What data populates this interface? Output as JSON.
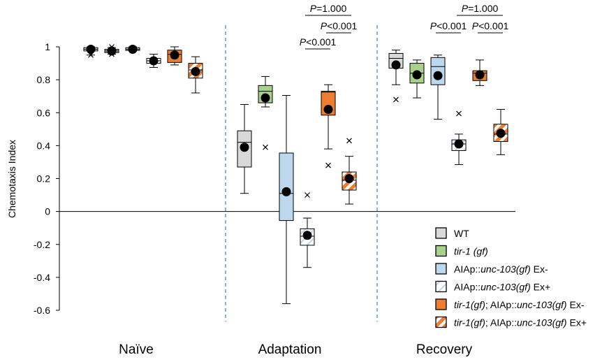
{
  "chart_data": {
    "type": "box",
    "ylabel": "Chemotaxis Index",
    "ylim": [
      -0.6,
      1
    ],
    "yticks": [
      "-0.6",
      "-0.4",
      "-0.2",
      "0",
      "0.2",
      "0.4",
      "0.6",
      "0.8",
      "1"
    ],
    "groups": [
      "Naïve",
      "Adaptation",
      "Recovery"
    ],
    "colors": {
      "wt": "#d9d9d9",
      "tir1": "#a9d18e",
      "aiap": "#bdd7ee",
      "orange": "#ed7d31",
      "dashed_line": "#5b9bd5"
    },
    "series": [
      {
        "legend_prefix": "",
        "legend_italic": "",
        "legend_mid": "WT",
        "legend_italic2": "",
        "legend_suffix": "",
        "fill": "wt",
        "striped": false,
        "stats": [
          {
            "min": 0.95,
            "q1": 0.975,
            "median": 0.985,
            "q3": 0.995,
            "max": 1.0,
            "mean": 0.985,
            "outliers": [
              0.95
            ]
          },
          {
            "min": 0.11,
            "q1": 0.27,
            "median": 0.42,
            "q3": 0.49,
            "max": 0.65,
            "mean": 0.39,
            "outliers": []
          },
          {
            "min": 0.77,
            "q1": 0.87,
            "median": 0.93,
            "q3": 0.96,
            "max": 0.98,
            "mean": 0.89,
            "outliers": [
              0.68
            ]
          }
        ]
      },
      {
        "legend_prefix": "",
        "legend_italic": "tir-1 (gf)",
        "legend_mid": "",
        "legend_italic2": "",
        "legend_suffix": "",
        "fill": "tir1",
        "striped": false,
        "stats": [
          {
            "min": 0.955,
            "q1": 0.965,
            "median": 0.975,
            "q3": 0.985,
            "max": 0.995,
            "mean": 0.975,
            "outliers": [
              0.955,
              1.0
            ]
          },
          {
            "min": 0.635,
            "q1": 0.66,
            "median": 0.73,
            "q3": 0.765,
            "max": 0.82,
            "mean": 0.69,
            "outliers": [
              0.39
            ]
          },
          {
            "min": 0.69,
            "q1": 0.78,
            "median": 0.84,
            "q3": 0.9,
            "max": 0.92,
            "mean": 0.83,
            "outliers": []
          }
        ]
      },
      {
        "legend_prefix": "AIAp::",
        "legend_italic": "unc-103(gf)",
        "legend_mid": " Ex-",
        "legend_italic2": "",
        "legend_suffix": "",
        "fill": "aiap",
        "striped": false,
        "stats": [
          {
            "min": 0.975,
            "q1": 0.978,
            "median": 0.985,
            "q3": 0.995,
            "max": 1.0,
            "mean": 0.985,
            "outliers": []
          },
          {
            "min": -0.56,
            "q1": -0.055,
            "median": 0.11,
            "q3": 0.355,
            "max": 0.705,
            "mean": 0.12,
            "outliers": []
          },
          {
            "min": 0.56,
            "q1": 0.77,
            "median": 0.88,
            "q3": 0.935,
            "max": 0.95,
            "mean": 0.825,
            "outliers": []
          }
        ]
      },
      {
        "legend_prefix": "AIAp::",
        "legend_italic": "unc-103(gf)",
        "legend_mid": " Ex+",
        "legend_italic2": "",
        "legend_suffix": "",
        "fill": "aiap",
        "striped": true,
        "stripe_color": "#ffffff",
        "stats": [
          {
            "min": 0.875,
            "q1": 0.9,
            "median": 0.915,
            "q3": 0.93,
            "max": 0.955,
            "mean": 0.915,
            "outliers": []
          },
          {
            "min": -0.34,
            "q1": -0.205,
            "median": -0.15,
            "q3": -0.105,
            "max": -0.04,
            "mean": -0.145,
            "outliers": [
              0.1
            ]
          },
          {
            "min": 0.285,
            "q1": 0.37,
            "median": 0.41,
            "q3": 0.435,
            "max": 0.47,
            "mean": 0.41,
            "outliers": [
              0.595
            ]
          }
        ]
      },
      {
        "legend_prefix": "",
        "legend_italic": "tir-1(gf)",
        "legend_mid": "; AIAp::",
        "legend_italic2": "unc-103(gf)",
        "legend_suffix": " Ex-",
        "fill": "orange",
        "striped": false,
        "stats": [
          {
            "min": 0.89,
            "q1": 0.905,
            "median": 0.955,
            "q3": 0.98,
            "max": 1.0,
            "mean": 0.95,
            "outliers": []
          },
          {
            "min": 0.38,
            "q1": 0.585,
            "median": 0.725,
            "q3": 0.73,
            "max": 0.77,
            "mean": 0.62,
            "outliers": [
              0.28
            ]
          },
          {
            "min": 0.765,
            "q1": 0.795,
            "median": 0.84,
            "q3": 0.855,
            "max": 0.92,
            "mean": 0.83,
            "outliers": []
          }
        ]
      },
      {
        "legend_prefix": "",
        "legend_italic": "tir-1(gf)",
        "legend_mid": "; AIAp::",
        "legend_italic2": "unc-103(gf)",
        "legend_suffix": " Ex+",
        "fill": "orange",
        "striped": true,
        "stripe_color": "#ffffff",
        "stats": [
          {
            "min": 0.72,
            "q1": 0.81,
            "median": 0.86,
            "q3": 0.9,
            "max": 0.94,
            "mean": 0.85,
            "outliers": []
          },
          {
            "min": 0.045,
            "q1": 0.13,
            "median": 0.19,
            "q3": 0.24,
            "max": 0.335,
            "mean": 0.2,
            "outliers": [
              0.43
            ]
          },
          {
            "min": 0.345,
            "q1": 0.425,
            "median": 0.47,
            "q3": 0.53,
            "max": 0.62,
            "mean": 0.475,
            "outliers": []
          }
        ]
      }
    ],
    "comparisons": [
      {
        "group": 1,
        "from": 3,
        "to": 5,
        "level": 1,
        "p": "=1.000"
      },
      {
        "group": 1,
        "from": 4,
        "to": 5,
        "level": 0,
        "p": "<0.001"
      },
      {
        "group": 1,
        "from": 3,
        "to": 4,
        "level": -1,
        "p": "<0.001"
      },
      {
        "group": 2,
        "from": 3,
        "to": 5,
        "level": 1,
        "p": "=1.000"
      },
      {
        "group": 2,
        "from": 2,
        "to": 3,
        "level": 0,
        "p": "<0.001"
      },
      {
        "group": 2,
        "from": 4,
        "to": 5,
        "level": 0,
        "p": "<0.001"
      }
    ],
    "p_prefix": "P"
  }
}
